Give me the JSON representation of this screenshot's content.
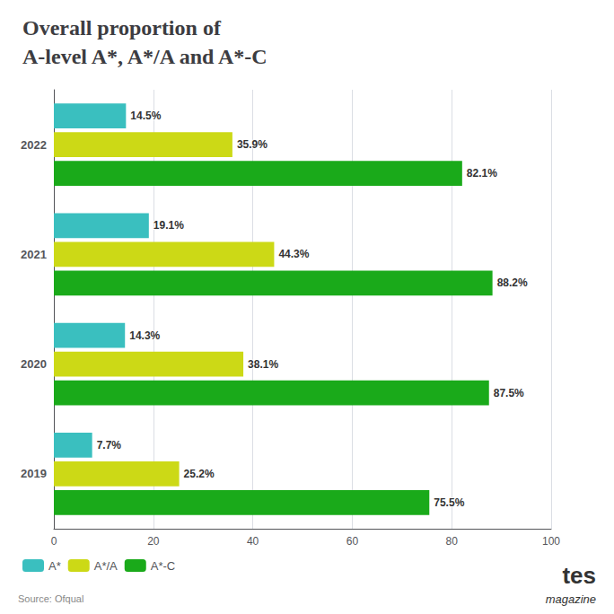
{
  "chart_data": {
    "type": "bar",
    "orientation": "horizontal",
    "title": "Overall proportion of",
    "subtitle": "A-level A*, A*/A and A*-C",
    "categories": [
      "2022",
      "2021",
      "2020",
      "2019"
    ],
    "series": [
      {
        "name": "A*",
        "color": "#3abfbf",
        "values": [
          14.5,
          19.1,
          14.3,
          7.7
        ],
        "value_labels": [
          "14.5%",
          "19.1%",
          "14.3%",
          "7.7%"
        ]
      },
      {
        "name": "A*/A",
        "color": "#ccd916",
        "values": [
          35.9,
          44.3,
          38.1,
          25.2
        ],
        "value_labels": [
          "35.9%",
          "44.3%",
          "38.1%",
          "25.2%"
        ]
      },
      {
        "name": "A*-C",
        "color": "#1aaa1a",
        "values": [
          82.1,
          88.2,
          87.5,
          75.5
        ],
        "value_labels": [
          "82.1%",
          "88.2%",
          "87.5%",
          "75.5%"
        ]
      }
    ],
    "xlim": [
      0,
      100
    ],
    "xticks": [
      0,
      20,
      40,
      60,
      80,
      100
    ],
    "grid": true,
    "legend": "bottom-left",
    "data_labels": true,
    "annotations": [
      "Source: Ofqual",
      "tes",
      "magazine"
    ]
  }
}
